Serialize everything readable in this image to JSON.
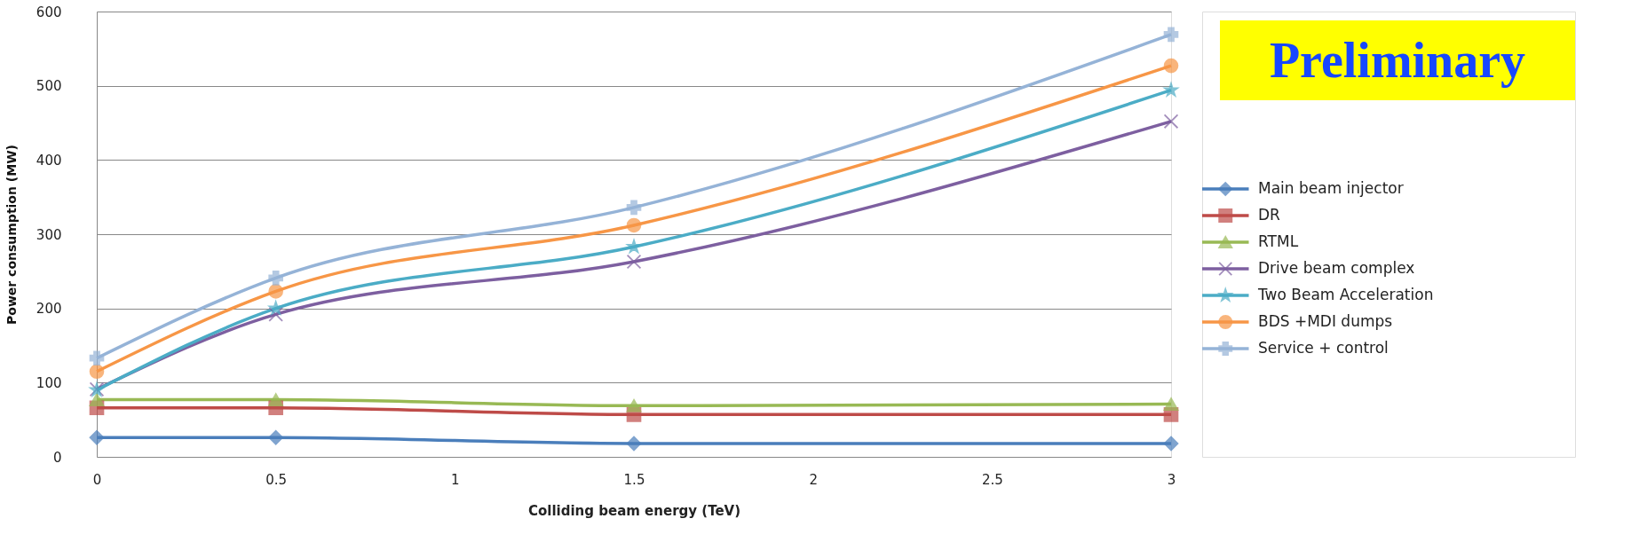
{
  "chart_data": {
    "type": "line",
    "xlabel": "Colliding beam energy (TeV)",
    "ylabel": "Power consumption (MW)",
    "x": [
      0,
      0.5,
      1.5,
      3
    ],
    "xlim": [
      0,
      3
    ],
    "xticks": [
      0,
      0.5,
      1,
      1.5,
      2,
      2.5,
      3
    ],
    "ylim": [
      0,
      600
    ],
    "yticks": [
      0,
      100,
      200,
      300,
      400,
      500,
      600
    ],
    "grid": "y",
    "legend": "right",
    "line_style": "solid",
    "annotations": [
      "Preliminary"
    ],
    "series": [
      {
        "name": "Main beam injector",
        "color": "#4a7ebb",
        "marker": "diamond",
        "values": [
          26,
          26,
          18,
          18
        ]
      },
      {
        "name": "DR",
        "color": "#be4b48",
        "marker": "square",
        "values": [
          66,
          66,
          57,
          57
        ]
      },
      {
        "name": "RTML",
        "color": "#98b954",
        "marker": "triangle",
        "values": [
          77,
          77,
          69,
          71
        ]
      },
      {
        "name": "Drive beam complex",
        "color": "#7d5fa0",
        "marker": "cross",
        "values": [
          91,
          192,
          263,
          452
        ]
      },
      {
        "name": "Two Beam Acceleration",
        "color": "#4bacc6",
        "marker": "star",
        "values": [
          90,
          200,
          283,
          494
        ]
      },
      {
        "name": "BDS +MDI dumps",
        "color": "#f79646",
        "marker": "circle",
        "values": [
          115,
          223,
          312,
          527
        ]
      },
      {
        "name": "Service + control",
        "color": "#95b3d7",
        "marker": "plus",
        "values": [
          133,
          241,
          336,
          569
        ]
      }
    ]
  }
}
